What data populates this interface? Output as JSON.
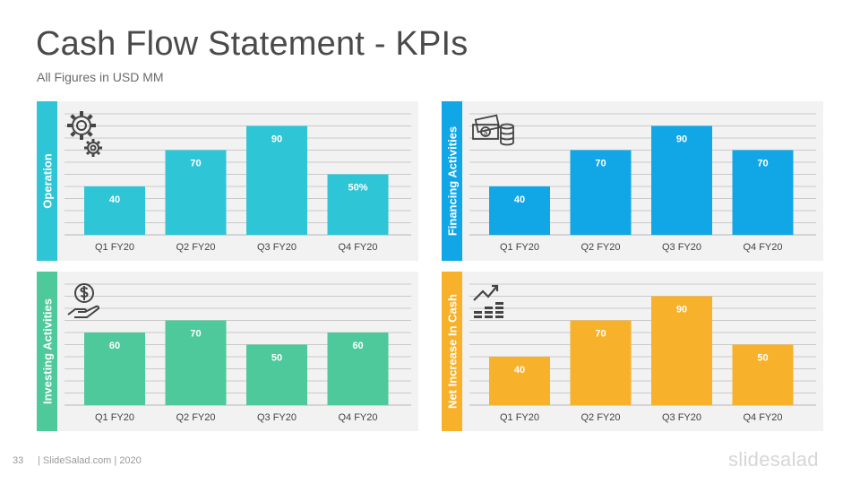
{
  "header": {
    "title": "Cash Flow Statement - KPIs",
    "subtitle": "All Figures in USD MM"
  },
  "footer": {
    "page_number": "33",
    "text": "| SlideSalad.com | 2020",
    "logo": "slidesalad"
  },
  "chart_data": [
    {
      "type": "bar",
      "title": "Operation",
      "categories": [
        "Q1 FY20",
        "Q2 FY20",
        "Q3 FY20",
        "Q4 FY20"
      ],
      "values": [
        40,
        70,
        90,
        50
      ],
      "data_labels": [
        "40",
        "70",
        "90",
        "50%"
      ],
      "ylim": [
        0,
        100
      ],
      "color": "#2ec6d6",
      "icon": "gears-icon",
      "grid": true
    },
    {
      "type": "bar",
      "title": "Financing Activities",
      "categories": [
        "Q1 FY20",
        "Q2 FY20",
        "Q3 FY20",
        "Q4 FY20"
      ],
      "values": [
        40,
        70,
        90,
        70
      ],
      "data_labels": [
        "40",
        "70",
        "90",
        "70"
      ],
      "ylim": [
        0,
        100
      ],
      "color": "#11a7e6",
      "icon": "money-coins-icon",
      "grid": true
    },
    {
      "type": "bar",
      "title": "Investing Activities",
      "categories": [
        "Q1 FY20",
        "Q2 FY20",
        "Q3 FY20",
        "Q4 FY20"
      ],
      "values": [
        60,
        70,
        50,
        60
      ],
      "data_labels": [
        "60",
        "70",
        "50",
        "60"
      ],
      "ylim": [
        0,
        100
      ],
      "color": "#4dc99b",
      "icon": "hand-dollar-icon",
      "grid": true
    },
    {
      "type": "bar",
      "title": "Net Increase In Cash",
      "categories": [
        "Q1 FY20",
        "Q2 FY20",
        "Q3 FY20",
        "Q4 FY20"
      ],
      "values": [
        40,
        70,
        90,
        50
      ],
      "data_labels": [
        "40",
        "70",
        "90",
        "50"
      ],
      "ylim": [
        0,
        100
      ],
      "color": "#f7b12b",
      "icon": "growth-chart-icon",
      "grid": true
    }
  ]
}
